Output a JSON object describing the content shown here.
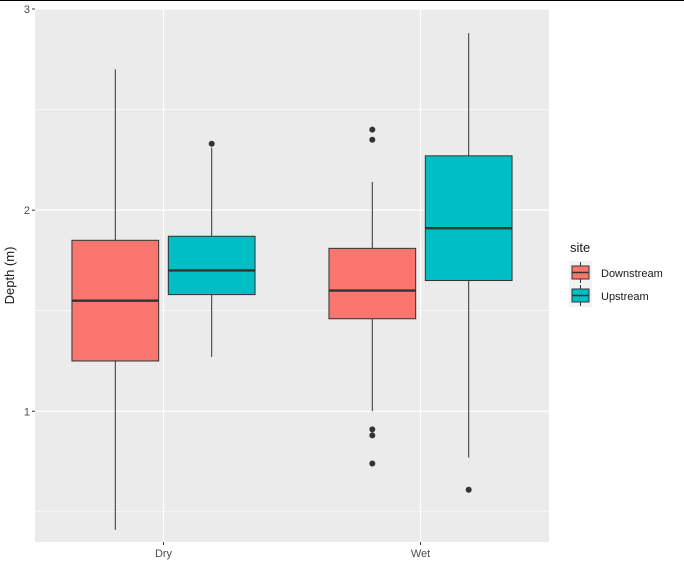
{
  "chart_data": {
    "type": "boxplot",
    "categories": [
      "Dry",
      "Wet"
    ],
    "ylabel": "Depth (m)",
    "xlabel": "",
    "ylim": [
      0.35,
      3.0
    ],
    "yticks": [
      1,
      2,
      3
    ],
    "ytick_labels": [
      "1",
      "2",
      "3"
    ],
    "grid": true,
    "legend": {
      "title": "site",
      "position": "right"
    },
    "series": [
      {
        "name": "Downstream",
        "color": "#F8766D",
        "boxes": [
          {
            "category": "Dry",
            "whisker_low": 0.41,
            "q1": 1.25,
            "median": 1.55,
            "q3": 1.85,
            "whisker_high": 2.7,
            "outliers": []
          },
          {
            "category": "Wet",
            "whisker_low": 1.0,
            "q1": 1.46,
            "median": 1.6,
            "q3": 1.81,
            "whisker_high": 2.14,
            "outliers": [
              2.4,
              2.35,
              0.91,
              0.88,
              0.74
            ]
          }
        ]
      },
      {
        "name": "Upstream",
        "color": "#00BFC4",
        "boxes": [
          {
            "category": "Dry",
            "whisker_low": 1.27,
            "q1": 1.58,
            "median": 1.7,
            "q3": 1.87,
            "whisker_high": 2.31,
            "outliers": [
              2.33
            ]
          },
          {
            "category": "Wet",
            "whisker_low": 0.77,
            "q1": 1.65,
            "median": 1.91,
            "q3": 2.27,
            "whisker_high": 2.88,
            "outliers": [
              0.61
            ]
          }
        ]
      }
    ]
  }
}
